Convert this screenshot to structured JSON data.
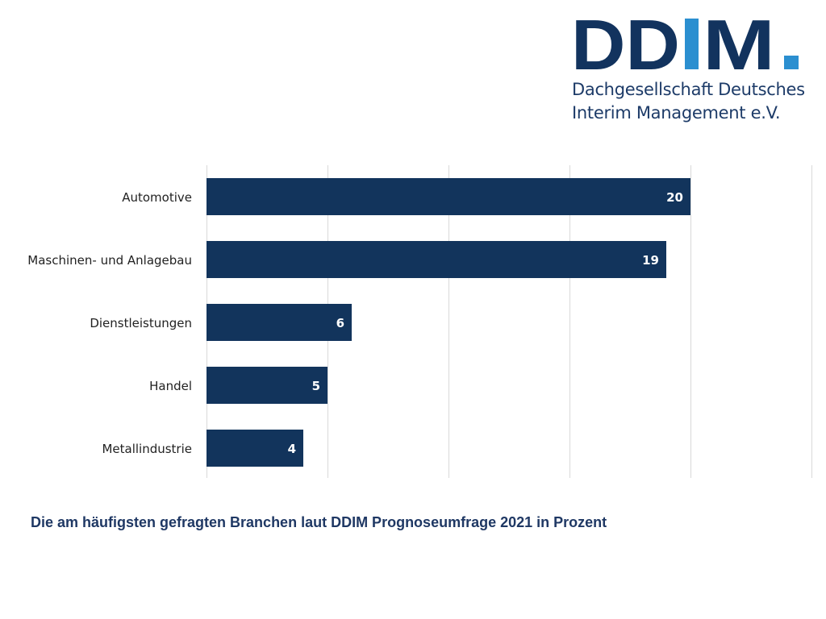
{
  "logo": {
    "letters": [
      "D",
      "D",
      "I",
      "M",
      "."
    ],
    "subtitle_line1": "Dachgesellschaft Deutsches",
    "subtitle_line2": "Interim Management e.V.",
    "navy": "#12335e",
    "blue": "#2b8fd0"
  },
  "chart_data": {
    "type": "bar",
    "orientation": "horizontal",
    "categories": [
      "Automotive",
      "Maschinen- und Anlagebau",
      "Dienstleistungen",
      "Handel",
      "Metallindustrie"
    ],
    "values": [
      20,
      19,
      6,
      5,
      4
    ],
    "title": "Die am häufigsten gefragten Branchen laut DDIM Prognoseumfrage 2021 in Prozent",
    "xlabel": "",
    "ylabel": "",
    "xlim": [
      0,
      25
    ],
    "grid_step": 5,
    "grid": true,
    "bar_color": "#12345c",
    "data_labels": true
  },
  "caption": "Die am häufigsten gefragten Branchen laut DDIM Prognoseumfrage 2021 in Prozent"
}
